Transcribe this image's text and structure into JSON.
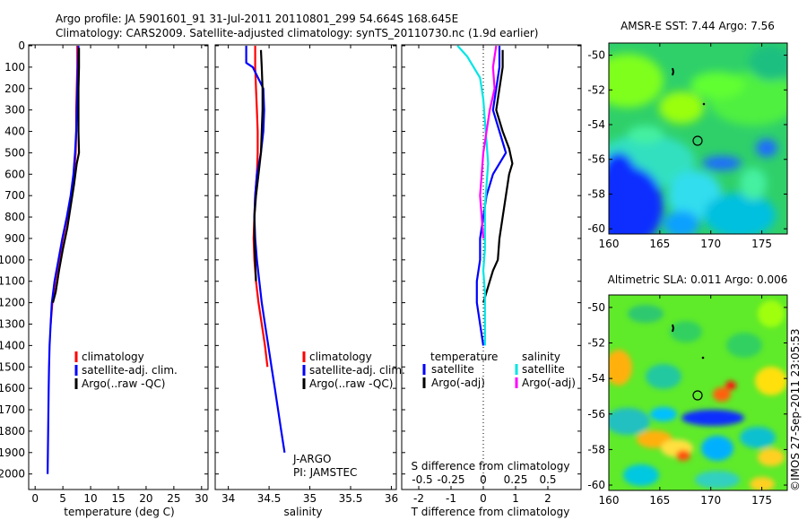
{
  "header": {
    "line1": "Argo profile: JA 5901601_91 31-Jul-2011 20110801_299 54.664S 168.645E",
    "line2": "Climatology: CARS2009. Satellite-adjusted climatology: synTS_20110730.nc (1.9d earlier)"
  },
  "colors": {
    "climatology": "#ff0000",
    "satellite": "#0000ff",
    "argo": "#000000",
    "sal_satellite": "#00e5e5",
    "sal_argo": "#ff00ff"
  },
  "chart_data": [
    {
      "type": "line",
      "xlabel": "temperature (deg C)",
      "ylabel": "",
      "xlim": [
        -1,
        31
      ],
      "ylim": [
        0,
        2060
      ],
      "y_reversed": true,
      "xticks": [
        "0",
        "5",
        "10",
        "15",
        "20",
        "25",
        "30"
      ],
      "xtick_values": [
        0,
        5,
        10,
        15,
        20,
        25,
        30
      ],
      "yticks": [
        "0",
        "100",
        "200",
        "300",
        "400",
        "500",
        "600",
        "700",
        "800",
        "900",
        "1000",
        "1100",
        "1200",
        "1300",
        "1400",
        "1500",
        "1600",
        "1700",
        "1800",
        "1900",
        "2000"
      ],
      "ytick_values": [
        0,
        100,
        200,
        300,
        400,
        500,
        600,
        700,
        800,
        900,
        1000,
        1100,
        1200,
        1300,
        1400,
        1500,
        1600,
        1700,
        1800,
        1900,
        2000
      ],
      "legend": [
        "climatology",
        "satellite-adj. clim.",
        "Argo(..raw -QC)"
      ],
      "series": [
        {
          "name": "climatology",
          "color": "#ff0000",
          "x": [
            7.6,
            7.6,
            7.5,
            7.4,
            7.4,
            7.3,
            7.0,
            6.5,
            5.8,
            5.0,
            4.3,
            3.6,
            3.1,
            2.8
          ],
          "y": [
            0,
            100,
            200,
            300,
            400,
            500,
            600,
            700,
            800,
            900,
            1000,
            1100,
            1200,
            1300
          ]
        },
        {
          "name": "satellite-adj. clim.",
          "color": "#0000ff",
          "x": [
            7.8,
            7.7,
            7.6,
            7.5,
            7.4,
            7.2,
            6.9,
            6.4,
            5.7,
            4.9,
            4.2,
            3.5,
            3.0,
            2.8,
            2.6,
            2.5,
            2.45,
            2.4,
            2.35,
            2.3,
            2.25
          ],
          "y": [
            0,
            100,
            200,
            300,
            400,
            500,
            600,
            700,
            800,
            900,
            1000,
            1100,
            1200,
            1300,
            1400,
            1500,
            1600,
            1700,
            1800,
            1900,
            2000
          ]
        },
        {
          "name": "Argo(..raw -QC)",
          "color": "#000000",
          "x": [
            7.9,
            7.9,
            7.8,
            7.8,
            7.8,
            7.9,
            7.5,
            7.0,
            6.4,
            5.8,
            5.0,
            4.3,
            3.7,
            3.2
          ],
          "y": [
            10,
            100,
            200,
            300,
            400,
            500,
            550,
            650,
            750,
            850,
            950,
            1050,
            1150,
            1200
          ]
        }
      ]
    },
    {
      "type": "line",
      "xlabel": "salinity",
      "ylabel": "",
      "xlim": [
        33.85,
        36.05
      ],
      "ylim": [
        0,
        2060
      ],
      "y_reversed": true,
      "xticks": [
        "34",
        "34.5",
        "35",
        "35.5",
        "36"
      ],
      "xtick_values": [
        34,
        34.5,
        35,
        35.5,
        36
      ],
      "legend": [
        "climatology",
        "satellite-adj. clim.",
        "Argo(..raw -QC)"
      ],
      "annotations": [
        "J-ARGO",
        "PI: JAMSTEC"
      ],
      "series": [
        {
          "name": "climatology",
          "color": "#ff0000",
          "x": [
            34.33,
            34.33,
            34.34,
            34.35,
            34.36,
            34.36,
            34.35,
            34.33,
            34.32,
            34.31,
            34.32,
            34.34,
            34.37,
            34.41,
            34.45,
            34.48
          ],
          "y": [
            0,
            100,
            200,
            300,
            400,
            500,
            600,
            700,
            800,
            900,
            1000,
            1100,
            1200,
            1300,
            1400,
            1500
          ]
        },
        {
          "name": "satellite-adj. clim.",
          "color": "#0000ff",
          "x": [
            34.22,
            34.22,
            34.3,
            34.43,
            34.44,
            34.43,
            34.4,
            34.35,
            34.33,
            34.32,
            34.33,
            34.35,
            34.38,
            34.41,
            34.45,
            34.49,
            34.53,
            34.57,
            34.61,
            34.65,
            34.69
          ],
          "y": [
            0,
            80,
            100,
            200,
            300,
            400,
            500,
            600,
            700,
            800,
            900,
            1000,
            1100,
            1200,
            1300,
            1400,
            1500,
            1600,
            1700,
            1800,
            1900
          ]
        },
        {
          "name": "Argo(..raw -QC)",
          "color": "#000000",
          "x": [
            34.4,
            34.41,
            34.42,
            34.42,
            34.41,
            34.4,
            34.37,
            34.34,
            34.32,
            34.32,
            34.33,
            34.34
          ],
          "y": [
            20,
            100,
            200,
            300,
            400,
            500,
            600,
            700,
            800,
            900,
            1000,
            1100
          ]
        }
      ]
    },
    {
      "type": "line",
      "xlabel": "T difference from climatology",
      "xlabel2": "S difference from climatology",
      "xlim": [
        -2.5,
        3.0
      ],
      "ylim": [
        0,
        2060
      ],
      "y_reversed": true,
      "xticks": [
        "-2",
        "-1",
        "0",
        "1",
        "2"
      ],
      "xtick_values": [
        -2,
        -1,
        0,
        1,
        2
      ],
      "xticks2": [
        "-0.5",
        "-0.25",
        "0",
        "0.25",
        "0.5"
      ],
      "legend": {
        "temperature": [
          "satellite",
          "Argo(-adj)"
        ],
        "salinity": [
          "satellite",
          "Argo(-adj)"
        ]
      },
      "legend_titles": [
        "temperature",
        "salinity"
      ],
      "series": [
        {
          "name": "satellite",
          "group": "temperature",
          "color": "#0000ff",
          "x": [
            0.5,
            0.5,
            0.4,
            0.3,
            0.5,
            0.7,
            0.3,
            0.1,
            0.0,
            -0.1,
            -0.1,
            -0.2,
            -0.2,
            -0.1,
            -0.05,
            0.0
          ],
          "y": [
            0,
            100,
            200,
            300,
            400,
            500,
            600,
            700,
            800,
            900,
            1000,
            1100,
            1200,
            1300,
            1350,
            1400
          ]
        },
        {
          "name": "Argo(-adj)",
          "group": "temperature",
          "color": "#000000",
          "x": [
            0.6,
            0.6,
            0.5,
            0.4,
            0.6,
            0.8,
            0.9,
            0.8,
            0.7,
            0.6,
            0.5,
            0.45,
            0.3,
            0.2,
            0.1,
            0.0
          ],
          "y": [
            20,
            100,
            200,
            300,
            400,
            480,
            550,
            600,
            700,
            800,
            900,
            1000,
            1050,
            1100,
            1150,
            1200
          ]
        },
        {
          "name": "satellite",
          "group": "salinity",
          "color": "#00e5e5",
          "x": [
            -0.8,
            -0.5,
            -0.1,
            0.0,
            0.05,
            0.1,
            0.15,
            0.1,
            0.05,
            0.05,
            0.05,
            0.0,
            0.05,
            0.05,
            0.05,
            0.05
          ],
          "y": [
            0,
            50,
            150,
            250,
            350,
            450,
            550,
            650,
            750,
            850,
            950,
            1050,
            1150,
            1250,
            1350,
            1400
          ]
        },
        {
          "name": "Argo(-adj)",
          "group": "salinity",
          "color": "#ff00ff",
          "x": [
            0.4,
            0.3,
            0.35,
            0.2,
            0.1,
            0.0,
            -0.05,
            -0.1,
            -0.05,
            0.0
          ],
          "y": [
            0,
            100,
            200,
            300,
            400,
            500,
            600,
            700,
            800,
            900
          ]
        }
      ]
    },
    {
      "type": "heatmap",
      "title": "AMSR-E SST: 7.44 Argo: 7.56",
      "xlim": [
        160,
        177.5
      ],
      "ylim": [
        -60.3,
        -49.3
      ],
      "xticks": [
        "160",
        "165",
        "170",
        "175"
      ],
      "xtick_values": [
        160,
        165,
        170,
        175
      ],
      "yticks": [
        "-50",
        "-52",
        "-54",
        "-56",
        "-58",
        "-60"
      ],
      "ytick_values": [
        -50,
        -52,
        -54,
        -56,
        -58,
        -60
      ],
      "marker": {
        "lon": 168.645,
        "lat": -54.664
      }
    },
    {
      "type": "heatmap",
      "title": "Altimetric SLA: 0.011 Argo: 0.006",
      "xlim": [
        160,
        177.5
      ],
      "ylim": [
        -60.3,
        -49.3
      ],
      "xticks": [
        "160",
        "165",
        "170",
        "175"
      ],
      "xtick_values": [
        160,
        165,
        170,
        175
      ],
      "yticks": [
        "-50",
        "-52",
        "-54",
        "-56",
        "-58",
        "-60"
      ],
      "ytick_values": [
        -50,
        -52,
        -54,
        -56,
        -58,
        -60
      ],
      "marker": {
        "lon": 168.645,
        "lat": -54.664
      }
    }
  ],
  "stamp": "©IMOS 27-Sep-2011 23:05:53"
}
